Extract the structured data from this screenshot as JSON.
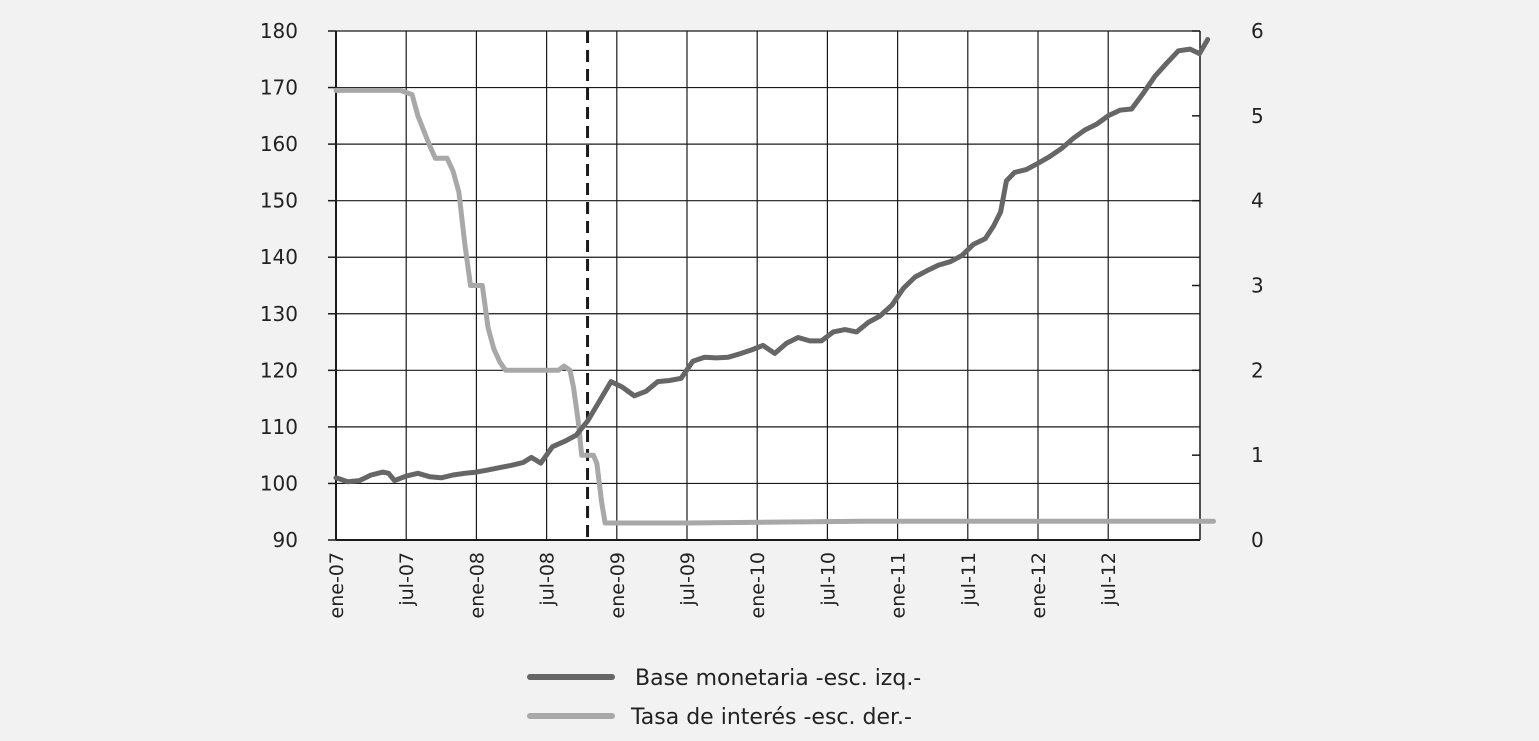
{
  "chart_data": {
    "type": "line",
    "background": "#f2f2f2",
    "x_tick_labels": [
      "ene-07",
      "jul-07",
      "ene-08",
      "jul-08",
      "ene-09",
      "jul-09",
      "ene-10",
      "jul-10",
      "ene-11",
      "jul-11",
      "ene-12",
      "jul-12"
    ],
    "x_range_months": [
      0,
      73
    ],
    "y_left": {
      "range": [
        90,
        180
      ],
      "ticks": [
        "90",
        "100",
        "110",
        "120",
        "130",
        "140",
        "150",
        "160",
        "170",
        "180"
      ]
    },
    "y_right": {
      "range": [
        0,
        6
      ],
      "ticks": [
        "0",
        "1",
        "2",
        "3",
        "4",
        "5",
        "6"
      ]
    },
    "grid": true,
    "event_line": {
      "month": 21.5,
      "style": "dashed"
    },
    "legend": {
      "placement": "bottom",
      "entries": [
        {
          "label": "Base monetaria -esc. izq.-",
          "color": "#666666"
        },
        {
          "label": "Tasa de interés -esc. der.-",
          "color": "#a8a8a8"
        }
      ]
    },
    "series": [
      {
        "name": "Base monetaria -esc. izq.-",
        "axis": "left",
        "color": "#666666",
        "points": [
          [
            0,
            101
          ],
          [
            1,
            100.3
          ],
          [
            2,
            100.5
          ],
          [
            3,
            101.5
          ],
          [
            4,
            102
          ],
          [
            4.5,
            101.8
          ],
          [
            5,
            100.5
          ],
          [
            6,
            101.3
          ],
          [
            7,
            101.8
          ],
          [
            8,
            101.2
          ],
          [
            9,
            101
          ],
          [
            10,
            101.5
          ],
          [
            11,
            101.8
          ],
          [
            12,
            102
          ],
          [
            13,
            102.4
          ],
          [
            14,
            102.8
          ],
          [
            15,
            103.2
          ],
          [
            16,
            103.7
          ],
          [
            16.7,
            104.6
          ],
          [
            17.5,
            103.6
          ],
          [
            18.5,
            106.5
          ],
          [
            19.5,
            107.4
          ],
          [
            20.5,
            108.5
          ],
          [
            21.5,
            111
          ],
          [
            22.5,
            114.5
          ],
          [
            23.5,
            118
          ],
          [
            24.5,
            117
          ],
          [
            25.5,
            115.5
          ],
          [
            26.5,
            116.3
          ],
          [
            27.5,
            118
          ],
          [
            28.5,
            118.2
          ],
          [
            29.5,
            118.6
          ],
          [
            30.5,
            121.6
          ],
          [
            31.5,
            122.3
          ],
          [
            32.5,
            122.2
          ],
          [
            33.5,
            122.3
          ],
          [
            34.5,
            122.9
          ],
          [
            35.5,
            123.6
          ],
          [
            36.5,
            124.4
          ],
          [
            37.5,
            123
          ],
          [
            38.5,
            124.8
          ],
          [
            39.5,
            125.8
          ],
          [
            40.5,
            125.2
          ],
          [
            41.5,
            125.2
          ],
          [
            42.5,
            126.8
          ],
          [
            43.5,
            127.2
          ],
          [
            44.5,
            126.8
          ],
          [
            45.5,
            128.5
          ],
          [
            46.5,
            129.6
          ],
          [
            47.5,
            131.5
          ],
          [
            48.5,
            134.5
          ],
          [
            49.5,
            136.5
          ],
          [
            50.5,
            137.6
          ],
          [
            51.5,
            138.6
          ],
          [
            52.5,
            139.2
          ],
          [
            53.5,
            140.3
          ],
          [
            54.5,
            142.3
          ],
          [
            55.5,
            143.3
          ],
          [
            56.2,
            145.5
          ],
          [
            56.8,
            148
          ],
          [
            57.3,
            153.5
          ],
          [
            58,
            155
          ],
          [
            59,
            155.5
          ],
          [
            60,
            156.6
          ],
          [
            61,
            157.8
          ],
          [
            62,
            159.2
          ],
          [
            63,
            161
          ],
          [
            64,
            162.5
          ],
          [
            65,
            163.5
          ],
          [
            66,
            165
          ],
          [
            67,
            166
          ],
          [
            68,
            166.2
          ],
          [
            69,
            169
          ],
          [
            70,
            172
          ],
          [
            71,
            174.3
          ],
          [
            72,
            176.5
          ],
          [
            73,
            176.8
          ],
          [
            73.8,
            176
          ],
          [
            74.5,
            178.5
          ]
        ]
      },
      {
        "name": "Tasa de interés -esc. der.-",
        "axis": "right",
        "color": "#a8a8a8",
        "points": [
          [
            0,
            5.3
          ],
          [
            5.5,
            5.3
          ],
          [
            6.5,
            5.25
          ],
          [
            7,
            5.0
          ],
          [
            8,
            4.65
          ],
          [
            8.5,
            4.5
          ],
          [
            9.5,
            4.5
          ],
          [
            10,
            4.35
          ],
          [
            10.5,
            4.1
          ],
          [
            11,
            3.5
          ],
          [
            11.5,
            3.0
          ],
          [
            12.5,
            3.0
          ],
          [
            13,
            2.5
          ],
          [
            13.5,
            2.25
          ],
          [
            14,
            2.1
          ],
          [
            14.5,
            2.0
          ],
          [
            17,
            2.0
          ],
          [
            19,
            2.0
          ],
          [
            19.5,
            2.05
          ],
          [
            20,
            2.0
          ],
          [
            20.3,
            1.8
          ],
          [
            20.7,
            1.4
          ],
          [
            21,
            1.0
          ],
          [
            22,
            1.0
          ],
          [
            22.3,
            0.9
          ],
          [
            22.7,
            0.45
          ],
          [
            23,
            0.2
          ],
          [
            30,
            0.2
          ],
          [
            45,
            0.22
          ],
          [
            60,
            0.22
          ],
          [
            75,
            0.22
          ]
        ]
      }
    ]
  }
}
